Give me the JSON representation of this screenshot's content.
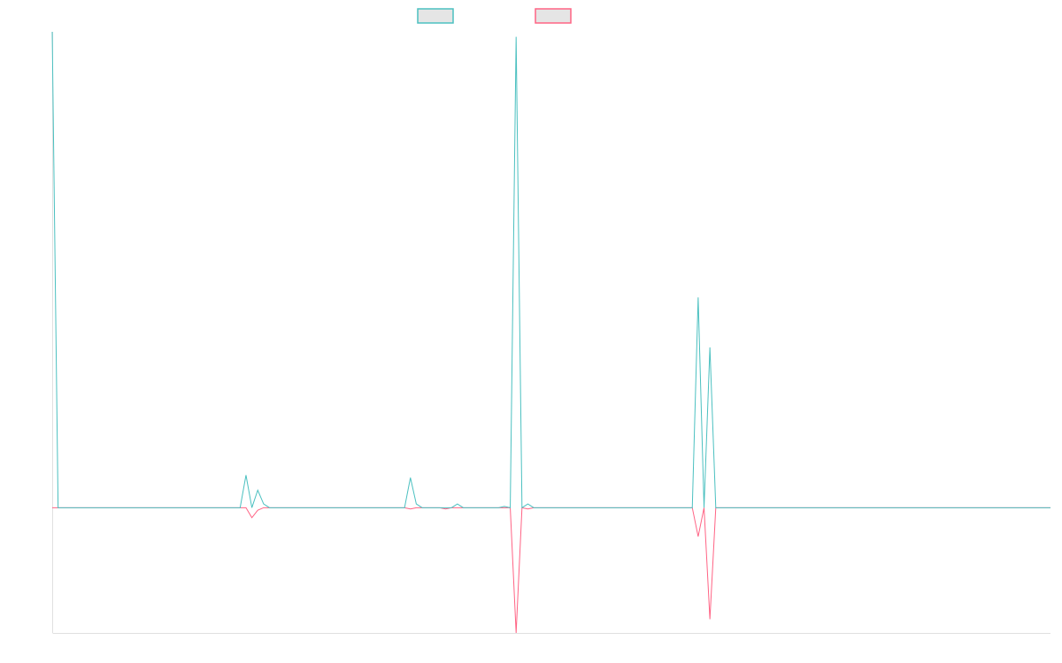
{
  "chart_data": {
    "type": "line",
    "title": "",
    "xlabel": "",
    "ylabel": "",
    "grid": false,
    "legend_position": "top-center",
    "colors": {
      "series_a": "#4bc0c0",
      "series_b": "#ff6384",
      "legend_fill": "#e5e5e5",
      "axis": "#e0e0e0"
    },
    "x_count": 171,
    "ylim": [
      -100,
      380
    ],
    "series": [
      {
        "color": "#4bc0c0",
        "points": [
          [
            0,
            380
          ],
          [
            1,
            0
          ],
          [
            32,
            0
          ],
          [
            33,
            26
          ],
          [
            34,
            0
          ],
          [
            35,
            14
          ],
          [
            36,
            3
          ],
          [
            37,
            0
          ],
          [
            50,
            0
          ],
          [
            60,
            0
          ],
          [
            61,
            24
          ],
          [
            62,
            3
          ],
          [
            63,
            0
          ],
          [
            68,
            0
          ],
          [
            69,
            3
          ],
          [
            70,
            0
          ],
          [
            76,
            0
          ],
          [
            77,
            1
          ],
          [
            78,
            0
          ],
          [
            79,
            376
          ],
          [
            80,
            0
          ],
          [
            81,
            3
          ],
          [
            82,
            0
          ],
          [
            90,
            0
          ],
          [
            109,
            0
          ],
          [
            110,
            168
          ],
          [
            111,
            0
          ],
          [
            112,
            128
          ],
          [
            113,
            0
          ],
          [
            170,
            0
          ]
        ]
      },
      {
        "color": "#ff6384",
        "points": [
          [
            0,
            0
          ],
          [
            33,
            0
          ],
          [
            34,
            -8
          ],
          [
            35,
            -2
          ],
          [
            36,
            0
          ],
          [
            60,
            0
          ],
          [
            61,
            -1
          ],
          [
            62,
            0
          ],
          [
            66,
            0
          ],
          [
            67,
            -1
          ],
          [
            68,
            0
          ],
          [
            78,
            0
          ],
          [
            79,
            -100
          ],
          [
            80,
            0
          ],
          [
            81,
            -1
          ],
          [
            82,
            0
          ],
          [
            109,
            0
          ],
          [
            110,
            -23
          ],
          [
            111,
            0
          ],
          [
            112,
            -89
          ],
          [
            113,
            0
          ],
          [
            170,
            0
          ]
        ]
      }
    ]
  }
}
